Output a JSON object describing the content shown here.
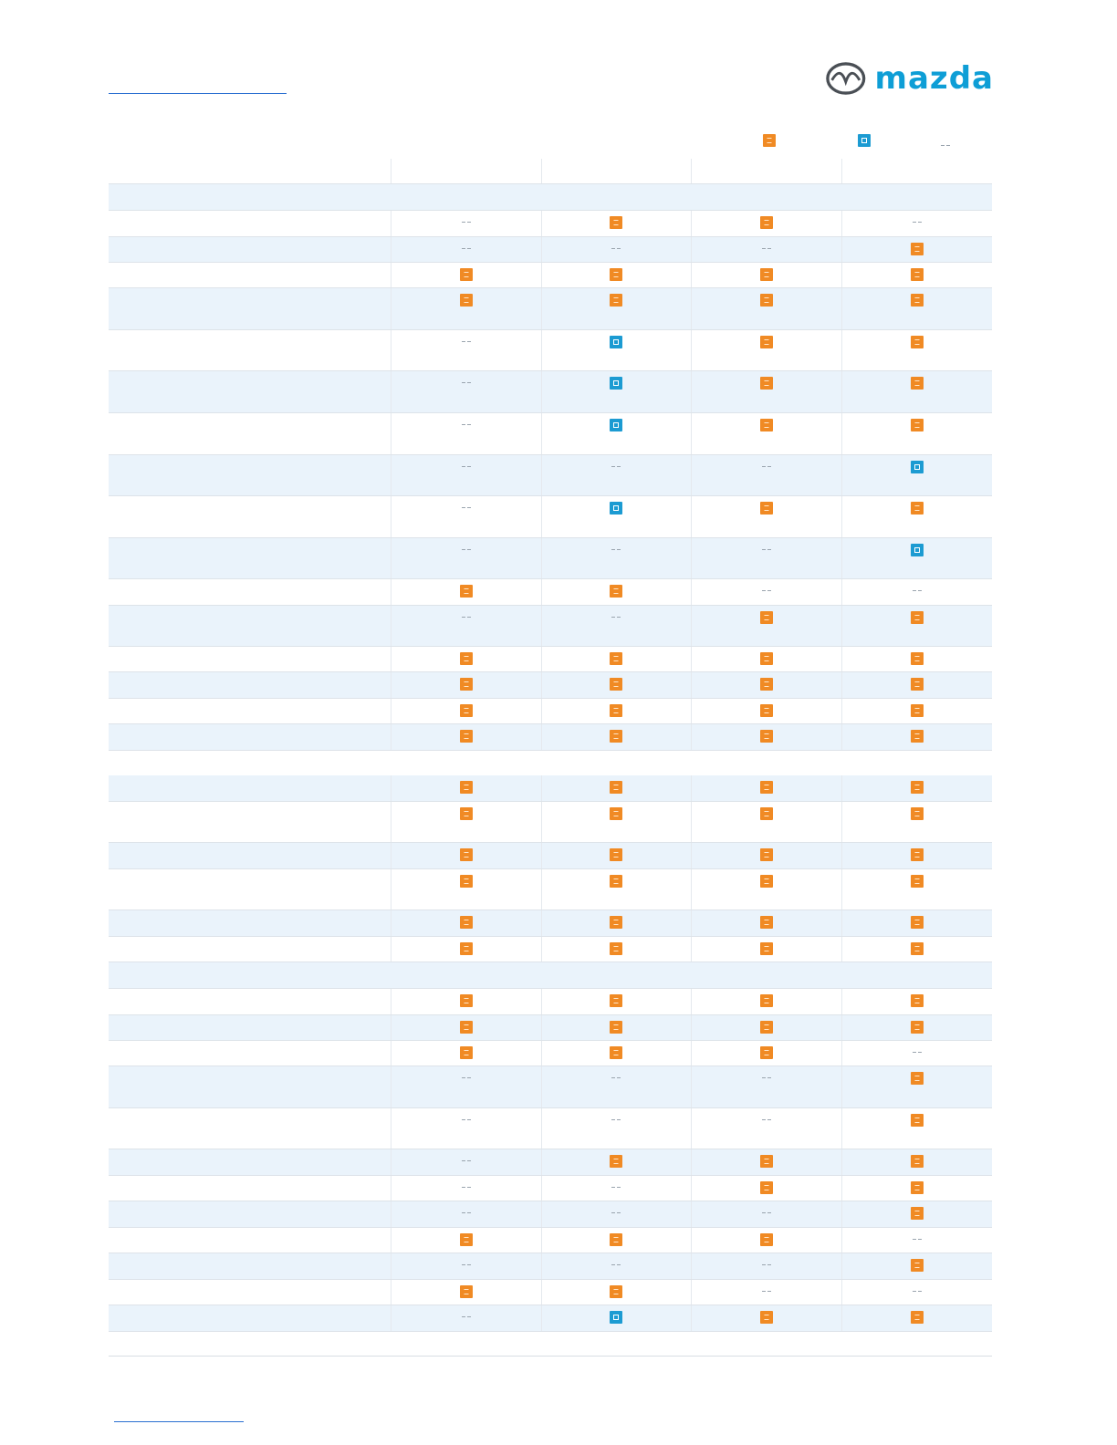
{
  "brand": {
    "wordmark": "mazda",
    "logo_icon": "mazda-wing-logo-icon",
    "wordmark_color": "#0e9ed6"
  },
  "legend": [
    {
      "mark": "S",
      "icon": "standard-icon",
      "color": "#f08a24"
    },
    {
      "mark": "O",
      "icon": "optional-icon",
      "color": "#1c9bd2"
    },
    {
      "mark": "-",
      "icon": "not-available-icon",
      "color": "#9aa4ae"
    }
  ],
  "columns": [
    "",
    "",
    "",
    ""
  ],
  "rows": [
    {
      "kind": "header",
      "h": 28
    },
    {
      "kind": "section",
      "h": 28
    },
    {
      "kind": "data",
      "h": 29,
      "shade": false,
      "values": [
        "-",
        "S",
        "S",
        "-"
      ]
    },
    {
      "kind": "data",
      "h": 28,
      "shade": true,
      "values": [
        "-",
        "-",
        "-",
        "S"
      ]
    },
    {
      "kind": "data",
      "h": 28,
      "shade": false,
      "values": [
        "S",
        "S",
        "S",
        "S"
      ]
    },
    {
      "kind": "data",
      "h": 46,
      "shade": true,
      "values": [
        "S",
        "S",
        "S",
        "S"
      ]
    },
    {
      "kind": "data",
      "h": 45,
      "shade": false,
      "values": [
        "-",
        "O",
        "S",
        "S"
      ]
    },
    {
      "kind": "data",
      "h": 46,
      "shade": true,
      "values": [
        "-",
        "O",
        "S",
        "S"
      ]
    },
    {
      "kind": "data",
      "h": 46,
      "shade": false,
      "values": [
        "-",
        "O",
        "S",
        "S"
      ]
    },
    {
      "kind": "data",
      "h": 45,
      "shade": true,
      "values": [
        "-",
        "-",
        "-",
        "O"
      ]
    },
    {
      "kind": "data",
      "h": 46,
      "shade": false,
      "values": [
        "-",
        "O",
        "S",
        "S"
      ]
    },
    {
      "kind": "data",
      "h": 45,
      "shade": true,
      "values": [
        "-",
        "-",
        "-",
        "O"
      ]
    },
    {
      "kind": "data",
      "h": 29,
      "shade": false,
      "values": [
        "S",
        "S",
        "-",
        "-"
      ]
    },
    {
      "kind": "data",
      "h": 45,
      "shade": true,
      "values": [
        "-",
        "-",
        "S",
        "S"
      ]
    },
    {
      "kind": "data",
      "h": 28,
      "shade": false,
      "values": [
        "S",
        "S",
        "S",
        "S"
      ]
    },
    {
      "kind": "data",
      "h": 29,
      "shade": true,
      "values": [
        "S",
        "S",
        "S",
        "S"
      ]
    },
    {
      "kind": "data",
      "h": 28,
      "shade": false,
      "values": [
        "S",
        "S",
        "S",
        "S"
      ]
    },
    {
      "kind": "data",
      "h": 29,
      "shade": true,
      "values": [
        "S",
        "S",
        "S",
        "S"
      ]
    },
    {
      "kind": "section-plain",
      "h": 27
    },
    {
      "kind": "data",
      "h": 29,
      "shade": true,
      "values": [
        "S",
        "S",
        "S",
        "S"
      ]
    },
    {
      "kind": "data",
      "h": 45,
      "shade": false,
      "values": [
        "S",
        "S",
        "S",
        "S"
      ]
    },
    {
      "kind": "data",
      "h": 29,
      "shade": true,
      "values": [
        "S",
        "S",
        "S",
        "S"
      ]
    },
    {
      "kind": "data",
      "h": 45,
      "shade": false,
      "values": [
        "S",
        "S",
        "S",
        "S"
      ]
    },
    {
      "kind": "data",
      "h": 29,
      "shade": true,
      "values": [
        "S",
        "S",
        "S",
        "S"
      ]
    },
    {
      "kind": "data",
      "h": 28,
      "shade": false,
      "values": [
        "S",
        "S",
        "S",
        "S"
      ]
    },
    {
      "kind": "section",
      "h": 28
    },
    {
      "kind": "data",
      "h": 29,
      "shade": false,
      "values": [
        "S",
        "S",
        "S",
        "S"
      ]
    },
    {
      "kind": "data",
      "h": 28,
      "shade": true,
      "values": [
        "S",
        "S",
        "S",
        "S"
      ]
    },
    {
      "kind": "data",
      "h": 28,
      "shade": false,
      "values": [
        "S",
        "S",
        "S",
        "-"
      ]
    },
    {
      "kind": "data",
      "h": 46,
      "shade": true,
      "values": [
        "-",
        "-",
        "-",
        "S"
      ]
    },
    {
      "kind": "data",
      "h": 45,
      "shade": false,
      "values": [
        "-",
        "-",
        "-",
        "S"
      ]
    },
    {
      "kind": "data",
      "h": 29,
      "shade": true,
      "values": [
        "-",
        "S",
        "S",
        "S"
      ]
    },
    {
      "kind": "data",
      "h": 28,
      "shade": false,
      "values": [
        "-",
        "-",
        "S",
        "S"
      ]
    },
    {
      "kind": "data",
      "h": 29,
      "shade": true,
      "values": [
        "-",
        "-",
        "-",
        "S"
      ]
    },
    {
      "kind": "data",
      "h": 28,
      "shade": false,
      "values": [
        "S",
        "S",
        "S",
        "-"
      ]
    },
    {
      "kind": "data",
      "h": 29,
      "shade": true,
      "values": [
        "-",
        "-",
        "-",
        "S"
      ]
    },
    {
      "kind": "data",
      "h": 28,
      "shade": false,
      "values": [
        "S",
        "S",
        "-",
        "-"
      ]
    },
    {
      "kind": "data",
      "h": 29,
      "shade": true,
      "values": [
        "-",
        "O",
        "S",
        "S"
      ]
    }
  ]
}
